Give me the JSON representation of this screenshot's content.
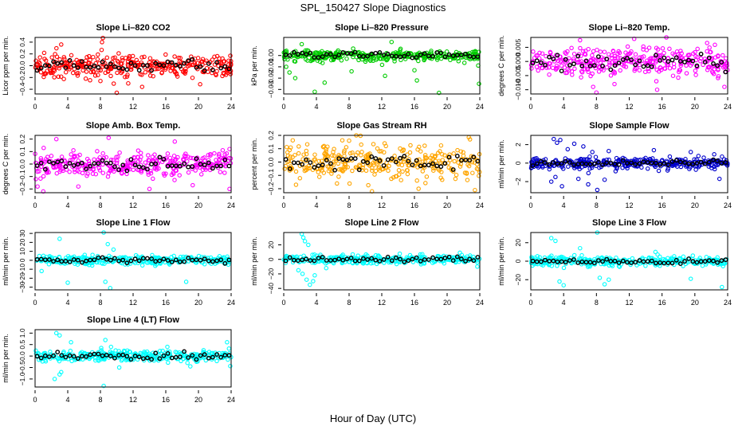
{
  "page": {
    "title": "SPL_150427  Slope Diagnostics",
    "xlabel": "Hour of Day (UTC)"
  },
  "chart_data": [
    {
      "type": "scatter",
      "title": "Slope Li–820 CO2",
      "ylabel": "Licor ppm per min.",
      "color": "#ff0000",
      "x_ticks": [
        0,
        4,
        8,
        12,
        16,
        20,
        24
      ],
      "xlim": [
        0,
        24
      ],
      "y_ticks": [
        "−0.4",
        "−0.2",
        "0.0",
        "0.2",
        "0.4"
      ],
      "y_tick_values": [
        -0.4,
        -0.2,
        0.0,
        0.2,
        0.4
      ],
      "ylim": [
        -0.48,
        0.48
      ],
      "spread": 0.09,
      "outliers": [
        [
          3.2,
          0.36
        ],
        [
          8.2,
          0.4
        ],
        [
          8.3,
          0.47
        ],
        [
          6.2,
          -0.22
        ],
        [
          8.0,
          -0.26
        ],
        [
          10.0,
          -0.46
        ],
        [
          11.4,
          -0.3
        ],
        [
          13.1,
          -0.36
        ],
        [
          8.6,
          -0.12
        ]
      ]
    },
    {
      "type": "scatter",
      "title": "Slope Li–820 Pressure",
      "ylabel": "kPa per min.",
      "color": "#00cc00",
      "x_ticks": [
        0,
        4,
        8,
        12,
        16,
        20,
        24
      ],
      "xlim": [
        0,
        24
      ],
      "y_ticks": [
        "−0.03",
        "−0.02",
        "−0.01",
        "0.00"
      ],
      "y_tick_values": [
        -0.03,
        -0.02,
        -0.01,
        0.0
      ],
      "ylim": [
        -0.034,
        0.016
      ],
      "spread": 0.0025,
      "outliers": [
        [
          0.3,
          -0.01
        ],
        [
          0.7,
          -0.015
        ],
        [
          1.4,
          -0.02
        ],
        [
          3.8,
          -0.032
        ],
        [
          5.0,
          -0.024
        ],
        [
          8.3,
          -0.014
        ],
        [
          12.4,
          -0.018
        ],
        [
          16.0,
          -0.013
        ],
        [
          16.3,
          -0.022
        ],
        [
          19.0,
          -0.033
        ],
        [
          23.9,
          -0.025
        ],
        [
          2.2,
          0.01
        ],
        [
          13.2,
          0.012
        ]
      ]
    },
    {
      "type": "scatter",
      "title": "Slope Li–820 Temp.",
      "ylabel": "degrees C per min.",
      "color": "#ff00ff",
      "x_ticks": [
        0,
        4,
        8,
        12,
        16,
        20,
        24
      ],
      "xlim": [
        0,
        24
      ],
      "y_ticks": [
        "−0.010",
        "−0.005",
        "0.000",
        "0.005"
      ],
      "y_tick_values": [
        -0.01,
        -0.005,
        0.0,
        0.005
      ],
      "ylim": [
        -0.0115,
        0.0085
      ],
      "spread": 0.0025,
      "outliers": [
        [
          6.0,
          0.0075
        ],
        [
          7.6,
          -0.009
        ],
        [
          8.0,
          -0.011
        ],
        [
          10.2,
          -0.008
        ],
        [
          12.6,
          0.008
        ],
        [
          15.3,
          -0.007
        ],
        [
          15.4,
          -0.01
        ],
        [
          23.6,
          -0.009
        ]
      ]
    },
    {
      "type": "scatter",
      "title": "Slope Amb. Box Temp.",
      "ylabel": "degrees C per min.",
      "color": "#ff00ff",
      "x_ticks": [
        0,
        4,
        8,
        12,
        16,
        20,
        24
      ],
      "xlim": [
        0,
        24
      ],
      "y_ticks": [
        "−0.2",
        "−0.1",
        "0.0",
        "0.1",
        "0.2"
      ],
      "y_tick_values": [
        -0.2,
        -0.1,
        0.0,
        0.1,
        0.2
      ],
      "ylim": [
        -0.23,
        0.23
      ],
      "spread": 0.05,
      "outliers": [
        [
          0.3,
          -0.18
        ],
        [
          1.0,
          -0.22
        ],
        [
          2.6,
          0.2
        ],
        [
          5.3,
          -0.18
        ],
        [
          9.0,
          0.21
        ],
        [
          14.0,
          -0.2
        ],
        [
          17.1,
          0.18
        ],
        [
          19.3,
          -0.17
        ],
        [
          23.8,
          -0.2
        ],
        [
          23.8,
          0.12
        ]
      ]
    },
    {
      "type": "scatter",
      "title": "Slope Gas Stream RH",
      "ylabel": "percent per min.",
      "color": "#ffa500",
      "x_ticks": [
        0,
        4,
        8,
        12,
        16,
        20,
        24
      ],
      "xlim": [
        0,
        24
      ],
      "y_ticks": [
        "−0.2",
        "−0.1",
        "0.0",
        "0.1",
        "0.2"
      ],
      "y_tick_values": [
        -0.2,
        -0.1,
        0.0,
        0.1,
        0.2
      ],
      "ylim": [
        -0.23,
        0.2
      ],
      "spread": 0.06,
      "outliers": [
        [
          10.8,
          -0.22
        ],
        [
          23.4,
          -0.21
        ],
        [
          1.5,
          -0.17
        ],
        [
          22.8,
          0.17
        ],
        [
          8.0,
          0.16
        ]
      ]
    },
    {
      "type": "scatter",
      "title": "Slope Sample Flow",
      "ylabel": "ml/min per min.",
      "color": "#0000cc",
      "x_ticks": [
        0,
        4,
        8,
        12,
        16,
        20,
        24
      ],
      "xlim": [
        0,
        24
      ],
      "y_ticks": [
        "−2",
        "0",
        "2"
      ],
      "y_tick_values": [
        -2,
        0,
        2
      ],
      "ylim": [
        -3.2,
        3.0
      ],
      "spread": 0.3,
      "outliers": [
        [
          2.8,
          2.6
        ],
        [
          3.2,
          2.2
        ],
        [
          3.6,
          2.5
        ],
        [
          3.8,
          -2.5
        ],
        [
          2.5,
          -2.0
        ],
        [
          3.0,
          -1.5
        ],
        [
          4.5,
          1.5
        ],
        [
          5.3,
          2.1
        ],
        [
          6.4,
          1.8
        ],
        [
          7.0,
          -2.3
        ],
        [
          7.5,
          1.2
        ],
        [
          8.1,
          -2.9
        ],
        [
          9.0,
          -1.8
        ],
        [
          9.5,
          1.3
        ],
        [
          5.8,
          -1.7
        ],
        [
          15.0,
          1.4
        ],
        [
          19.5,
          1.2
        ],
        [
          23.0,
          -1.7
        ]
      ]
    },
    {
      "type": "scatter",
      "title": "Slope Line 1 Flow",
      "ylabel": "ml/min per min.",
      "color": "#00ffff",
      "x_ticks": [
        0,
        4,
        8,
        12,
        16,
        20,
        24
      ],
      "xlim": [
        0,
        24
      ],
      "y_ticks": [
        "−30",
        "−20",
        "−10",
        "0",
        "10",
        "20",
        "30"
      ],
      "y_tick_values": [
        -30,
        -20,
        -10,
        0,
        10,
        20,
        30
      ],
      "ylim": [
        -33,
        31
      ],
      "spread": 2.5,
      "outliers": [
        [
          3.0,
          24
        ],
        [
          4.0,
          -25
        ],
        [
          8.4,
          31
        ],
        [
          8.6,
          -24
        ],
        [
          9.2,
          -31
        ],
        [
          18.5,
          -24
        ],
        [
          0.8,
          -12
        ],
        [
          9.6,
          12
        ],
        [
          8.9,
          18
        ]
      ]
    },
    {
      "type": "scatter",
      "title": "Slope Line 2 Flow",
      "ylabel": "ml/min per min.",
      "color": "#00ffff",
      "x_ticks": [
        0,
        4,
        8,
        12,
        16,
        20,
        24
      ],
      "xlim": [
        0,
        24
      ],
      "y_ticks": [
        "−40",
        "−20",
        "0",
        "20"
      ],
      "y_tick_values": [
        -40,
        -20,
        0,
        20
      ],
      "ylim": [
        -42,
        37
      ],
      "spread": 3.0,
      "outliers": [
        [
          2.2,
          35
        ],
        [
          2.4,
          30
        ],
        [
          2.6,
          25
        ],
        [
          3.0,
          20
        ],
        [
          2.3,
          -20
        ],
        [
          2.8,
          -28
        ],
        [
          3.2,
          -35
        ],
        [
          3.6,
          -30
        ],
        [
          1.8,
          -15
        ],
        [
          3.8,
          -22
        ],
        [
          5.2,
          -12
        ],
        [
          23.7,
          -10
        ]
      ]
    },
    {
      "type": "scatter",
      "title": "Slope Line 3 Flow",
      "ylabel": "ml/min per min.",
      "color": "#00ffff",
      "x_ticks": [
        0,
        4,
        8,
        12,
        16,
        20,
        24
      ],
      "xlim": [
        0,
        24
      ],
      "y_ticks": [
        "−20",
        "0",
        "20"
      ],
      "y_tick_values": [
        -20,
        0,
        20
      ],
      "ylim": [
        -31,
        31
      ],
      "spread": 2.5,
      "outliers": [
        [
          2.5,
          25
        ],
        [
          3.0,
          22
        ],
        [
          3.5,
          -22
        ],
        [
          4.0,
          -26
        ],
        [
          8.1,
          31
        ],
        [
          8.4,
          -18
        ],
        [
          9.0,
          -25
        ],
        [
          9.5,
          -20
        ],
        [
          6.0,
          14
        ],
        [
          15.2,
          10
        ],
        [
          19.5,
          -19
        ],
        [
          23.3,
          -28
        ]
      ]
    },
    {
      "type": "scatter",
      "title": "Slope Line 4 (LT) Flow",
      "ylabel": "ml/min per min.",
      "color": "#00ffff",
      "x_ticks": [
        0,
        4,
        8,
        12,
        16,
        20,
        24
      ],
      "xlim": [
        0,
        24
      ],
      "y_ticks": [
        "−1.0",
        "−0.5",
        "0.0",
        "0.5",
        "1.0"
      ],
      "y_tick_values": [
        -1.0,
        -0.5,
        0.0,
        0.5,
        1.0
      ],
      "ylim": [
        -1.35,
        1.15
      ],
      "spread": 0.12,
      "outliers": [
        [
          2.6,
          1.0
        ],
        [
          3.0,
          0.9
        ],
        [
          2.4,
          -1.0
        ],
        [
          3.0,
          -0.8
        ],
        [
          3.2,
          -0.7
        ],
        [
          4.4,
          0.6
        ],
        [
          8.4,
          -1.3
        ],
        [
          8.6,
          0.7
        ],
        [
          9.3,
          0.4
        ],
        [
          10.3,
          -0.5
        ],
        [
          16.2,
          0.4
        ],
        [
          19.0,
          -0.45
        ],
        [
          23.5,
          0.6
        ]
      ]
    }
  ]
}
